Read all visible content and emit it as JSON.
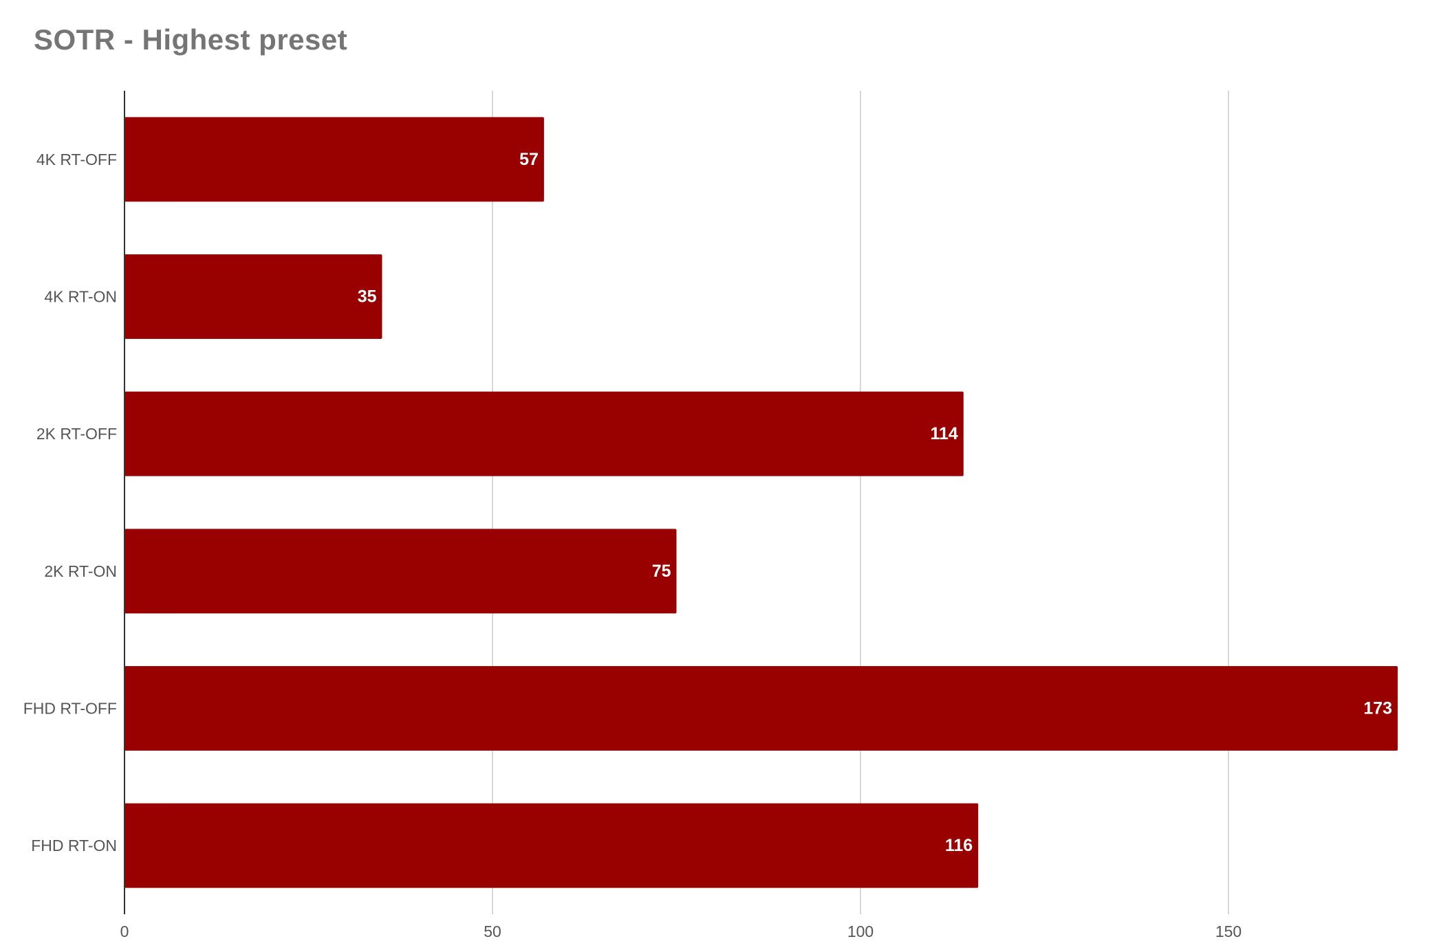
{
  "chart_data": {
    "type": "bar",
    "orientation": "horizontal",
    "title": "SOTR - Highest preset",
    "xlabel": "",
    "ylabel": "",
    "categories": [
      "4K RT-OFF",
      "4K RT-ON",
      "2K RT-OFF",
      "2K RT-ON",
      "FHD RT-OFF",
      "FHD RT-ON"
    ],
    "values": [
      57,
      35,
      114,
      75,
      173,
      116
    ],
    "data_labels": [
      "57",
      "35",
      "114",
      "75",
      "173",
      "116"
    ],
    "xlim": [
      0,
      175
    ],
    "x_ticks": [
      0,
      50,
      100,
      150
    ],
    "x_tick_labels": [
      "0",
      "50",
      "100",
      "150"
    ],
    "grid": true,
    "legend": "none",
    "bar_color": "#990000",
    "data_label_color": "#ffffff",
    "title_color": "#757575"
  }
}
